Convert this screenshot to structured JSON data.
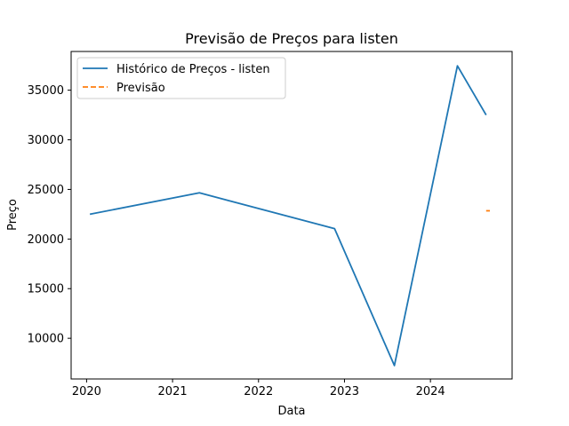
{
  "chart_data": {
    "type": "line",
    "title": "Previsão de Preços para listen",
    "xlabel": "Data",
    "ylabel": "Preço",
    "xlim": [
      2019.82,
      2024.95
    ],
    "ylim": [
      5900,
      38900
    ],
    "xticks": [
      2020,
      2021,
      2022,
      2023,
      2024
    ],
    "xtick_labels": [
      "2020",
      "2021",
      "2022",
      "2023",
      "2024"
    ],
    "yticks": [
      10000,
      15000,
      20000,
      25000,
      30000,
      35000
    ],
    "ytick_labels": [
      "10000",
      "15000",
      "20000",
      "25000",
      "30000",
      "35000"
    ],
    "grid": false,
    "legend": "upper-left",
    "series": [
      {
        "name": "Histórico de Preços - listen",
        "style": "solid",
        "color": "#1f77b4",
        "x": [
          "2020-01-15",
          "2021-04-25",
          "2022-11-20",
          "2023-08-01",
          "2024-04-25",
          "2024-08-25"
        ],
        "values": [
          22500,
          24650,
          21050,
          7250,
          37450,
          32500
        ]
      },
      {
        "name": "Previsão",
        "style": "dashed",
        "color": "#ff7f0e",
        "x": [
          "2024-08-25",
          "2024-09-10"
        ],
        "values": [
          22850,
          22850
        ]
      }
    ]
  }
}
